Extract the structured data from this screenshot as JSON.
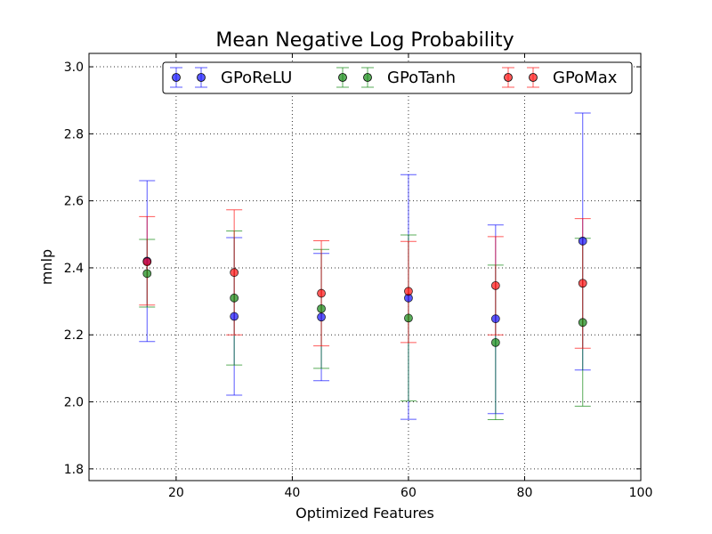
{
  "chart_data": {
    "type": "scatter",
    "title": "Mean Negative Log Probability",
    "xlabel": "Optimized Features",
    "ylabel": "mnlp",
    "xlim": [
      5,
      100
    ],
    "ylim": [
      1.765,
      3.04
    ],
    "xticks": [
      20,
      40,
      60,
      80,
      100
    ],
    "xtick_labels": [
      "20",
      "40",
      "60",
      "80",
      "100"
    ],
    "yticks": [
      1.8,
      2.0,
      2.2,
      2.4,
      2.6,
      2.8,
      3.0
    ],
    "ytick_labels": [
      "1.8",
      "2.0",
      "2.2",
      "2.4",
      "2.6",
      "2.8",
      "3.0"
    ],
    "grid": true,
    "legend_position": "top-right",
    "x": [
      15,
      30,
      45,
      60,
      75,
      90
    ],
    "series": [
      {
        "name": "GPoReLU",
        "color": "#0000ff",
        "values": [
          2.42,
          2.255,
          2.253,
          2.31,
          2.248,
          2.48
        ],
        "err_low": [
          2.18,
          2.02,
          2.063,
          1.948,
          1.965,
          2.095
        ],
        "err_high": [
          2.66,
          2.49,
          2.443,
          2.678,
          2.528,
          2.862
        ]
      },
      {
        "name": "GPoTanh",
        "color": "#008000",
        "values": [
          2.383,
          2.31,
          2.278,
          2.25,
          2.177,
          2.237
        ],
        "err_low": [
          2.283,
          2.11,
          2.1,
          2.003,
          1.947,
          1.987
        ],
        "err_high": [
          2.485,
          2.51,
          2.455,
          2.498,
          2.408,
          2.488
        ]
      },
      {
        "name": "GPoMax",
        "color": "#ff0000",
        "values": [
          2.418,
          2.386,
          2.324,
          2.33,
          2.347,
          2.354
        ],
        "err_low": [
          2.289,
          2.2,
          2.167,
          2.177,
          2.2,
          2.16
        ],
        "err_high": [
          2.553,
          2.573,
          2.481,
          2.479,
          2.493,
          2.547
        ]
      }
    ]
  }
}
